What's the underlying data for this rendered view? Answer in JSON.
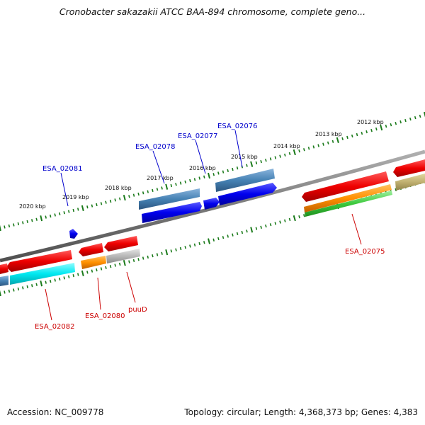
{
  "title": "Cronobacter sakazakii ATCC BAA-894 chromosome, complete geno...",
  "accession": "Accession: NC_009778",
  "topology": "Topology: circular; Length: 4,368,373 bp; Genes: 4,383",
  "ticks": [
    "2020 kbp",
    "2019 kbp",
    "2018 kbp",
    "2017 kbp",
    "2016 kbp",
    "2015 kbp",
    "2014 kbp",
    "2013 kbp",
    "2012 kbp"
  ],
  "gene_labels": {
    "ESA_02081": "ESA_02081",
    "ESA_02078": "ESA_02078",
    "ESA_02077": "ESA_02077",
    "ESA_02076": "ESA_02076",
    "ESA_02075": "ESA_02075",
    "ESA_02082": "ESA_02082",
    "ESA_02080": "ESA_02080",
    "puuD": "puuD"
  },
  "colors": {
    "forward_label": "#0000cc",
    "reverse_label": "#cc0000",
    "tick": "#1a7a1a",
    "backbone": "#808080"
  }
}
